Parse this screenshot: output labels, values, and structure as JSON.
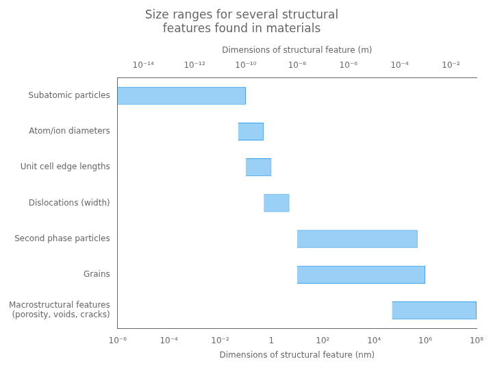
{
  "chart_data": {
    "type": "bar",
    "orientation": "horizontal",
    "title": "Size ranges for several structural\nfeatures found in materials",
    "categories": [
      "Subatomic particles",
      "Atom/ion diameters",
      "Unit cell edge lengths",
      "Dislocations (width)",
      "Second phase particles",
      "Grains",
      "Macrostructural features\n(porosity, voids, cracks)"
    ],
    "values": [
      [
        1e-15,
        1e-10
      ],
      [
        5e-11,
        5e-10
      ],
      [
        1e-10,
        1e-09
      ],
      [
        5e-10,
        5e-09
      ],
      [
        1e-08,
        0.0005
      ],
      [
        1e-08,
        0.001
      ],
      [
        5e-05,
        0.1
      ]
    ],
    "log": "x",
    "xlabel": "Dimensions of structural feature (m)",
    "xlim": [
      1e-15,
      0.1
    ],
    "xticks": [
      {
        "value": 1e-14,
        "label": "10⁻¹⁴"
      },
      {
        "value": 1e-12,
        "label": "10⁻¹²"
      },
      {
        "value": 1e-10,
        "label": "10⁻¹⁰"
      },
      {
        "value": 1e-08,
        "label": "10⁻⁸"
      },
      {
        "value": 1e-06,
        "label": "10⁻⁶"
      },
      {
        "value": 0.0001,
        "label": "10⁻⁴"
      },
      {
        "value": 0.01,
        "label": "10⁻²"
      }
    ],
    "x2label": "Dimensions of structural feature (nm)",
    "x2lim": [
      1e-06,
      100000000.0
    ],
    "x2ticks": [
      {
        "value": 1e-06,
        "label": "10⁻⁶"
      },
      {
        "value": 0.0001,
        "label": "10⁻⁴"
      },
      {
        "value": 0.01,
        "label": "10⁻²"
      },
      1,
      {
        "value": 100.0,
        "label": "10²"
      },
      {
        "value": 10000.0,
        "label": "10⁴"
      },
      {
        "value": 1000000.0,
        "label": "10⁶"
      },
      {
        "value": 100000000.0,
        "label": "10⁸"
      }
    ],
    "grid": false
  }
}
